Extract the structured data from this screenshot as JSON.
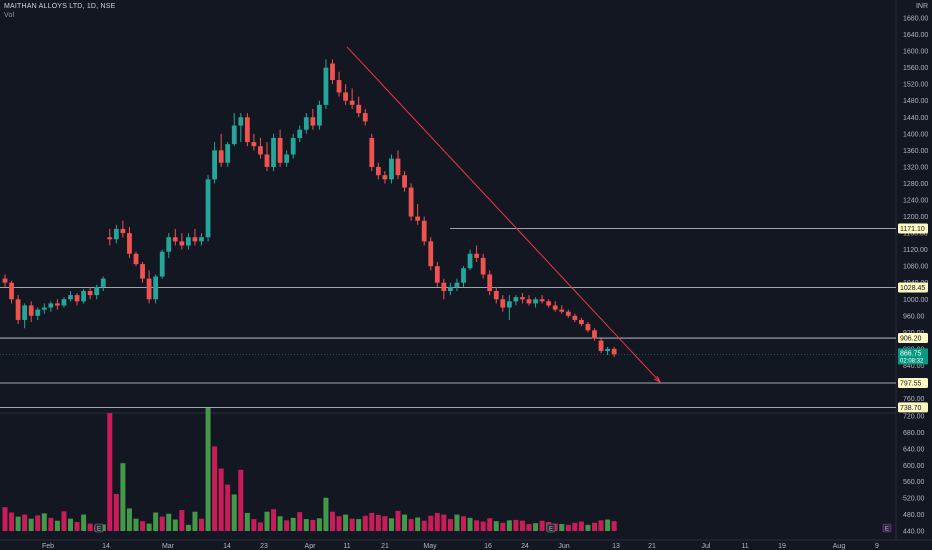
{
  "header": {
    "title": "MAITHAN ALLOYS LTD, 1D, NSE",
    "vol_label": "Vol",
    "currency": "INR"
  },
  "chart_data": {
    "type": "candlestick",
    "symbol": "MAITHAN ALLOYS LTD",
    "interval": "1D",
    "exchange": "NSE",
    "price_ticks": [
      1680,
      1640,
      1600,
      1560,
      1520,
      1480,
      1440,
      1400,
      1360,
      1320,
      1280,
      1240,
      1200,
      1160,
      1120,
      1080,
      1040,
      1000,
      960,
      920,
      880,
      840,
      800,
      760
    ],
    "volume_ticks": [
      720,
      680,
      640,
      600,
      560,
      520,
      480,
      440
    ],
    "x_labels": [
      {
        "label": "Feb",
        "x": 48
      },
      {
        "label": "14",
        "x": 106
      },
      {
        "label": "Mar",
        "x": 168
      },
      {
        "label": "14",
        "x": 227
      },
      {
        "label": "23",
        "x": 264
      },
      {
        "label": "Apr",
        "x": 310
      },
      {
        "label": "11",
        "x": 347
      },
      {
        "label": "21",
        "x": 385
      },
      {
        "label": "May",
        "x": 430
      },
      {
        "label": "16",
        "x": 488
      },
      {
        "label": "24",
        "x": 525
      },
      {
        "label": "Jun",
        "x": 564
      },
      {
        "label": "13",
        "x": 616
      },
      {
        "label": "21",
        "x": 652
      },
      {
        "label": "Jul",
        "x": 706
      },
      {
        "label": "11",
        "x": 745
      },
      {
        "label": "19",
        "x": 782
      },
      {
        "label": "Aug",
        "x": 839
      },
      {
        "label": "9",
        "x": 877
      }
    ],
    "horizontal_levels": [
      {
        "value": 1171.1,
        "label": "1171.10"
      },
      {
        "value": 1028.45,
        "label": "1028.45"
      },
      {
        "value": 906.2,
        "label": "906.20"
      },
      {
        "value": 797.55,
        "label": "797.55"
      },
      {
        "value": 738.7,
        "label": "738.70"
      }
    ],
    "last_price": {
      "value": 866.75,
      "label": "866.75",
      "countdown": "02:08:32"
    },
    "trendline": {
      "from": {
        "date": "Apr 11",
        "price": 1610
      },
      "to": {
        "date": "Jun 21",
        "price": 800
      }
    },
    "candles": [
      [
        1050,
        1060,
        1030,
        1040
      ],
      [
        1040,
        1045,
        990,
        1000
      ],
      [
        1000,
        1010,
        940,
        950
      ],
      [
        950,
        990,
        930,
        985
      ],
      [
        985,
        995,
        945,
        960
      ],
      [
        960,
        980,
        950,
        975
      ],
      [
        975,
        990,
        965,
        980
      ],
      [
        980,
        995,
        970,
        990
      ],
      [
        990,
        1000,
        975,
        985
      ],
      [
        985,
        1005,
        980,
        1000
      ],
      [
        1000,
        1020,
        995,
        1010
      ],
      [
        1010,
        1015,
        985,
        995
      ],
      [
        995,
        1025,
        990,
        1020
      ],
      [
        1020,
        1030,
        1000,
        1010
      ],
      [
        1010,
        1035,
        1000,
        1030
      ],
      [
        1030,
        1055,
        1020,
        1050
      ],
      [
        1150,
        1170,
        1130,
        1145
      ],
      [
        1145,
        1180,
        1135,
        1170
      ],
      [
        1170,
        1190,
        1150,
        1160
      ],
      [
        1160,
        1175,
        1100,
        1110
      ],
      [
        1110,
        1115,
        1080,
        1085
      ],
      [
        1085,
        1090,
        1040,
        1050
      ],
      [
        1050,
        1070,
        990,
        1000
      ],
      [
        1000,
        1060,
        990,
        1055
      ],
      [
        1055,
        1120,
        1050,
        1115
      ],
      [
        1115,
        1160,
        1100,
        1150
      ],
      [
        1150,
        1170,
        1130,
        1140
      ],
      [
        1140,
        1160,
        1120,
        1130
      ],
      [
        1130,
        1160,
        1120,
        1150
      ],
      [
        1150,
        1170,
        1130,
        1140
      ],
      [
        1140,
        1160,
        1130,
        1150
      ],
      [
        1150,
        1300,
        1140,
        1290
      ],
      [
        1290,
        1380,
        1280,
        1360
      ],
      [
        1360,
        1400,
        1320,
        1330
      ],
      [
        1330,
        1380,
        1320,
        1375
      ],
      [
        1375,
        1450,
        1370,
        1420
      ],
      [
        1420,
        1450,
        1380,
        1440
      ],
      [
        1440,
        1450,
        1370,
        1380
      ],
      [
        1380,
        1400,
        1360,
        1370
      ],
      [
        1370,
        1390,
        1340,
        1350
      ],
      [
        1350,
        1380,
        1310,
        1320
      ],
      [
        1320,
        1400,
        1310,
        1390
      ],
      [
        1390,
        1410,
        1320,
        1330
      ],
      [
        1330,
        1360,
        1320,
        1350
      ],
      [
        1350,
        1400,
        1340,
        1390
      ],
      [
        1390,
        1420,
        1380,
        1410
      ],
      [
        1410,
        1450,
        1400,
        1440
      ],
      [
        1440,
        1460,
        1410,
        1420
      ],
      [
        1420,
        1480,
        1410,
        1470
      ],
      [
        1470,
        1580,
        1460,
        1560
      ],
      [
        1570,
        1580,
        1520,
        1530
      ],
      [
        1530,
        1550,
        1490,
        1500
      ],
      [
        1500,
        1520,
        1470,
        1480
      ],
      [
        1480,
        1510,
        1460,
        1470
      ],
      [
        1470,
        1490,
        1440,
        1450
      ],
      [
        1450,
        1460,
        1420,
        1430
      ],
      [
        1390,
        1400,
        1310,
        1320
      ],
      [
        1320,
        1330,
        1290,
        1300
      ],
      [
        1300,
        1310,
        1280,
        1290
      ],
      [
        1290,
        1350,
        1280,
        1340
      ],
      [
        1340,
        1360,
        1290,
        1300
      ],
      [
        1300,
        1310,
        1260,
        1270
      ],
      [
        1270,
        1280,
        1190,
        1200
      ],
      [
        1200,
        1230,
        1180,
        1190
      ],
      [
        1190,
        1200,
        1130,
        1140
      ],
      [
        1140,
        1150,
        1070,
        1080
      ],
      [
        1080,
        1090,
        1030,
        1040
      ],
      [
        1040,
        1050,
        1000,
        1020
      ],
      [
        1020,
        1040,
        1010,
        1030
      ],
      [
        1030,
        1050,
        1020,
        1040
      ],
      [
        1040,
        1080,
        1030,
        1075
      ],
      [
        1075,
        1120,
        1070,
        1110
      ],
      [
        1110,
        1130,
        1090,
        1100
      ],
      [
        1100,
        1110,
        1050,
        1060
      ],
      [
        1060,
        1070,
        1010,
        1020
      ],
      [
        1020,
        1030,
        990,
        1000
      ],
      [
        1000,
        1010,
        970,
        980
      ],
      [
        980,
        1010,
        950,
        995
      ],
      [
        995,
        1010,
        985,
        1005
      ],
      [
        1005,
        1015,
        990,
        1000
      ],
      [
        1000,
        1010,
        985,
        990
      ],
      [
        990,
        1005,
        980,
        1000
      ],
      [
        1000,
        1010,
        990,
        995
      ],
      [
        995,
        1000,
        980,
        985
      ],
      [
        985,
        995,
        970,
        975
      ],
      [
        975,
        985,
        965,
        970
      ],
      [
        970,
        975,
        955,
        960
      ],
      [
        960,
        965,
        945,
        950
      ],
      [
        950,
        955,
        935,
        940
      ],
      [
        940,
        945,
        920,
        925
      ],
      [
        925,
        930,
        900,
        905
      ],
      [
        900,
        905,
        870,
        875
      ],
      [
        875,
        885,
        865,
        880
      ],
      [
        880,
        885,
        860,
        866.75
      ]
    ],
    "volumes": [
      [
        498,
        true
      ],
      [
        485,
        true
      ],
      [
        475,
        false
      ],
      [
        480,
        true
      ],
      [
        470,
        false
      ],
      [
        478,
        true
      ],
      [
        483,
        false
      ],
      [
        472,
        true
      ],
      [
        465,
        false
      ],
      [
        488,
        true
      ],
      [
        470,
        false
      ],
      [
        462,
        true
      ],
      [
        480,
        false
      ],
      [
        458,
        true
      ],
      [
        452,
        true
      ],
      [
        456,
        false
      ],
      [
        727,
        true
      ],
      [
        530,
        true
      ],
      [
        605,
        false
      ],
      [
        495,
        false
      ],
      [
        470,
        false
      ],
      [
        464,
        true
      ],
      [
        458,
        false
      ],
      [
        485,
        false
      ],
      [
        475,
        true
      ],
      [
        482,
        false
      ],
      [
        468,
        false
      ],
      [
        491,
        true
      ],
      [
        455,
        false
      ],
      [
        487,
        false
      ],
      [
        470,
        true
      ],
      [
        740,
        false
      ],
      [
        646,
        true
      ],
      [
        592,
        true
      ],
      [
        553,
        true
      ],
      [
        529,
        false
      ],
      [
        589,
        true
      ],
      [
        484,
        false
      ],
      [
        469,
        true
      ],
      [
        461,
        true
      ],
      [
        487,
        false
      ],
      [
        493,
        true
      ],
      [
        476,
        false
      ],
      [
        466,
        true
      ],
      [
        472,
        false
      ],
      [
        486,
        true
      ],
      [
        469,
        false
      ],
      [
        467,
        true
      ],
      [
        471,
        false
      ],
      [
        521,
        false
      ],
      [
        487,
        true
      ],
      [
        476,
        true
      ],
      [
        480,
        false
      ],
      [
        470,
        true
      ],
      [
        469,
        false
      ],
      [
        477,
        true
      ],
      [
        484,
        true
      ],
      [
        479,
        true
      ],
      [
        476,
        true
      ],
      [
        471,
        false
      ],
      [
        489,
        true
      ],
      [
        480,
        false
      ],
      [
        469,
        true
      ],
      [
        473,
        false
      ],
      [
        465,
        true
      ],
      [
        477,
        true
      ],
      [
        484,
        true
      ],
      [
        480,
        true
      ],
      [
        469,
        true
      ],
      [
        480,
        false
      ],
      [
        476,
        true
      ],
      [
        472,
        false
      ],
      [
        466,
        true
      ],
      [
        463,
        true
      ],
      [
        471,
        true
      ],
      [
        464,
        false
      ],
      [
        460,
        true
      ],
      [
        466,
        false
      ],
      [
        467,
        true
      ],
      [
        465,
        true
      ],
      [
        457,
        true
      ],
      [
        459,
        false
      ],
      [
        465,
        true
      ],
      [
        462,
        true
      ],
      [
        458,
        true
      ],
      [
        457,
        false
      ],
      [
        455,
        true
      ],
      [
        460,
        true
      ],
      [
        463,
        true
      ],
      [
        455,
        false
      ],
      [
        460,
        true
      ],
      [
        466,
        true
      ],
      [
        468,
        false
      ],
      [
        464,
        true
      ]
    ]
  },
  "colors": {
    "background": "#131722",
    "up": "#26a69a",
    "down": "#ef5350",
    "vol_up": "#4caf50",
    "vol_down": "#e91e63",
    "trendline": "#f23645",
    "level_line": "#d1d4dc",
    "level_label_bg": "#fff9c4",
    "axis_text": "#b2b5be"
  },
  "markers": {
    "earnings": "E"
  }
}
